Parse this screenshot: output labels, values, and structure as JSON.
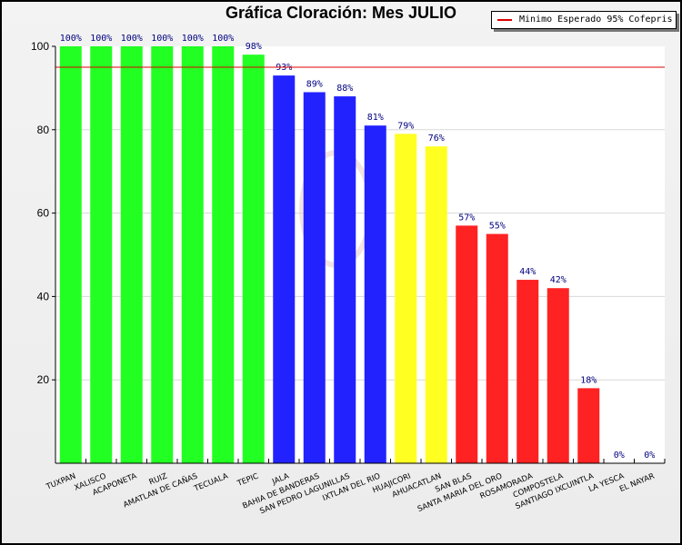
{
  "chart_data": {
    "type": "bar",
    "title": "Gráfica Cloración: Mes JULIO",
    "xlabel": "",
    "ylabel": "",
    "ylim": [
      0,
      100
    ],
    "yticks": [
      20,
      40,
      60,
      80,
      100
    ],
    "grid": true,
    "legend_position": "top-right",
    "legend": [
      {
        "label": "Minimo Esperado 95% Cofepris",
        "color": "#e00000"
      }
    ],
    "reference_line": {
      "value": 95,
      "label": "Minimo Esperado 95% Cofepris",
      "color": "#e00000"
    },
    "categories": [
      "TUXPAN",
      "XALISCO",
      "ACAPONETA",
      "RUIZ",
      "AMATLAN DE CAÑAS",
      "TECUALA",
      "TEPIC",
      "JALA",
      "BAHIA DE BANDERAS",
      "SAN PEDRO LAGUNILLAS",
      "IXTLAN DEL RIO",
      "HUAJICORI",
      "AHUACATLAN",
      "SAN BLAS",
      "SANTA MARIA DEL ORO",
      "ROSAMORADA",
      "COMPOSTELA",
      "SANTIAGO IXCUINTLA",
      "LA YESCA",
      "EL NAYAR"
    ],
    "values": [
      100,
      100,
      100,
      100,
      100,
      100,
      98,
      93,
      89,
      88,
      81,
      79,
      76,
      57,
      55,
      44,
      42,
      18,
      0,
      0
    ],
    "data_labels": [
      "100%",
      "100%",
      "100%",
      "100%",
      "100%",
      "100%",
      "98%",
      "93%",
      "89%",
      "88%",
      "81%",
      "79%",
      "76%",
      "57%",
      "55%",
      "44%",
      "42%",
      "18%",
      "0%",
      "0%"
    ],
    "colors": [
      "#22ff22",
      "#22ff22",
      "#22ff22",
      "#22ff22",
      "#22ff22",
      "#22ff22",
      "#22ff22",
      "#2222ff",
      "#2222ff",
      "#2222ff",
      "#2222ff",
      "#ffff22",
      "#ffff22",
      "#ff2222",
      "#ff2222",
      "#ff2222",
      "#ff2222",
      "#ff2222",
      "#ff2222",
      "#ff2222"
    ]
  }
}
